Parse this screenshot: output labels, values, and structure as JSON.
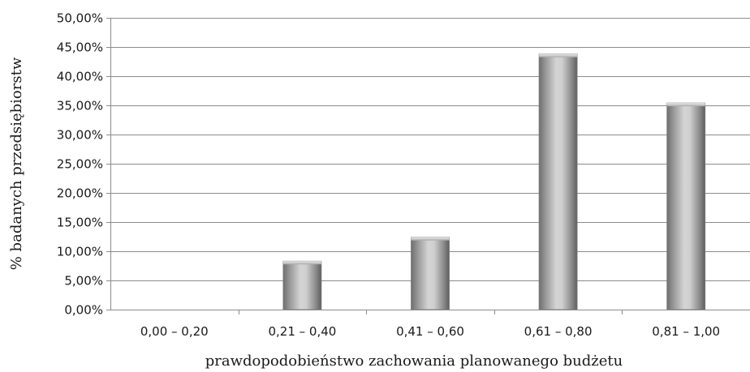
{
  "chart_data": {
    "type": "bar",
    "title": "",
    "xlabel": "prawdopodobieństwo zachowania planowanego budżetu",
    "ylabel": "% badanych przedsiębiorstw",
    "categories": [
      "0,00 – 0,20",
      "0,21 – 0,40",
      "0,41 – 0,60",
      "0,61 – 0,80",
      "0,81 – 1,00"
    ],
    "values": [
      0,
      8.3,
      12.4,
      43.8,
      35.4
    ],
    "ylim": [
      0,
      50
    ],
    "ytick_step": 5,
    "ytick_labels": [
      "0,00%",
      "5,00%",
      "10,00%",
      "15,00%",
      "20,00%",
      "25,00%",
      "30,00%",
      "35,00%",
      "40,00%",
      "45,00%",
      "50,00%"
    ],
    "grid": true,
    "legend": "none",
    "bar_color": "#b0b0b0",
    "bar_style": "3d-cylinder-gradient"
  }
}
